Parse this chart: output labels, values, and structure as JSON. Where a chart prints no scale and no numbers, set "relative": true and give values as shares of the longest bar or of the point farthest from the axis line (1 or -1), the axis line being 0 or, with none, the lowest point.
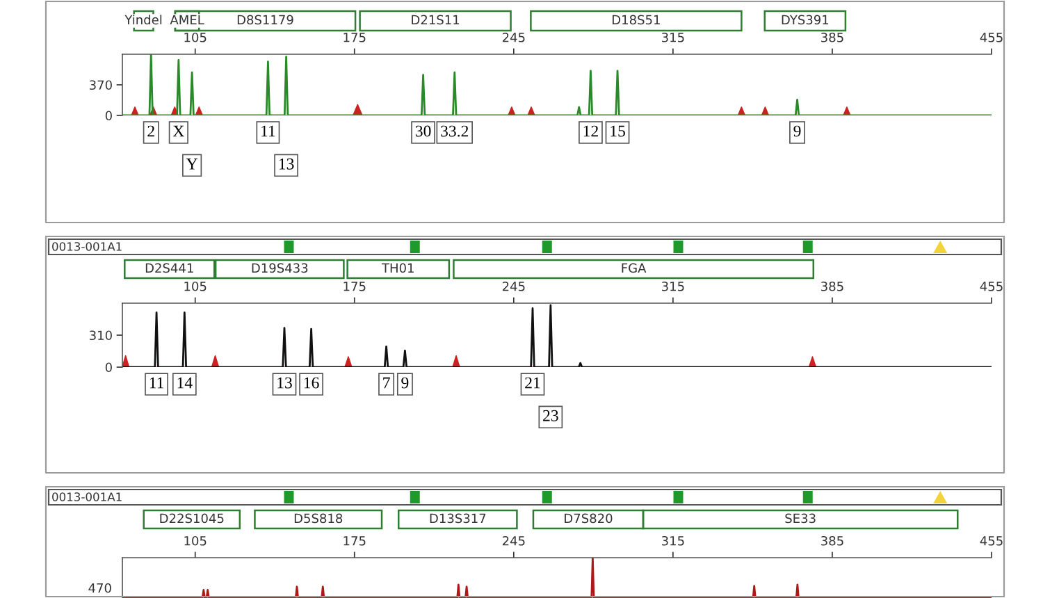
{
  "chart_data": [
    {
      "type": "line",
      "xlim": [
        73,
        455
      ],
      "xticks": [
        105,
        175,
        245,
        315,
        385,
        455
      ],
      "ylim": [
        0,
        740
      ],
      "yticks": [
        0,
        370
      ],
      "series": [
        {
          "type": "area",
          "color": "#cc2222",
          "x": [
            73,
            77.0,
            78.5,
            80.0,
            85.1,
            86.6,
            88.1,
            94.5,
            96,
            97.5,
            105.2,
            106.7,
            108.2,
            174.4,
            176.4,
            178.4,
            242.6,
            244.1,
            245.6,
            251.2,
            252.7,
            254.2,
            343.6,
            345.1,
            346.6,
            354.0,
            355.5,
            357.0,
            389.9,
            391.4,
            392.9,
            455
          ],
          "values": [
            0,
            0,
            100,
            0,
            0,
            100,
            0,
            0,
            100,
            0,
            0,
            100,
            0,
            0,
            130,
            0,
            0,
            100,
            0,
            0,
            100,
            0,
            0,
            100,
            0,
            0,
            100,
            0,
            0,
            100,
            0,
            0
          ]
        },
        {
          "color": "#2a8a2a",
          "x": [
            73,
            84.9,
            85.6,
            86.3,
            97.0,
            97.7,
            98.4,
            102.9,
            103.6,
            104.3,
            136.3,
            137.0,
            137.7,
            144.3,
            145.0,
            145.7,
            204.5,
            205.2,
            205.9,
            218.3,
            219.0,
            219.7,
            273.0,
            273.7,
            274.4,
            278.1,
            278.8,
            279.5,
            289.9,
            290.6,
            291.3,
            368.9,
            369.6,
            370.3,
            455
          ],
          "values": [
            0,
            0,
            740,
            0,
            0,
            670,
            0,
            0,
            520,
            0,
            0,
            650,
            0,
            0,
            710,
            0,
            0,
            490,
            0,
            0,
            520,
            0,
            0,
            100,
            0,
            0,
            540,
            0,
            0,
            540,
            0,
            0,
            190,
            0,
            0
          ]
        }
      ],
      "annotations": [
        "Yindel",
        "AMEL",
        "D8S1179",
        "D21S11",
        "D18S51",
        "DYS391",
        "2",
        "X",
        "Y",
        "11",
        "13",
        "30",
        "33.2",
        "12",
        "15",
        "9"
      ]
    },
    {
      "type": "line",
      "xlim": [
        73,
        455
      ],
      "xticks": [
        105,
        175,
        245,
        315,
        385,
        455
      ],
      "ylim": [
        0,
        620
      ],
      "yticks": [
        0,
        310
      ],
      "series": [
        {
          "type": "area",
          "color": "#cc2222",
          "x": [
            73,
            74.4,
            75.9,
            112.3,
            113.8,
            115.3,
            170.8,
            172.3,
            173.8,
            218.2,
            219.7,
            221.2,
            374.8,
            376.3,
            377.8,
            455
          ],
          "values": [
            0,
            110,
            0,
            0,
            110,
            0,
            0,
            100,
            0,
            0,
            110,
            0,
            0,
            100,
            0,
            0
          ]
        },
        {
          "color": "#111111",
          "x": [
            73,
            87.3,
            88.0,
            88.7,
            99.6,
            100.3,
            101.0,
            143.5,
            144.2,
            144.9,
            155.3,
            156.0,
            156.7,
            188.3,
            189.0,
            189.7,
            196.5,
            197.2,
            197.9,
            252.6,
            253.3,
            254.0,
            260.5,
            261.2,
            261.9,
            273.6,
            274.3,
            275.0,
            455
          ],
          "values": [
            0,
            0,
            530,
            0,
            0,
            530,
            0,
            0,
            380,
            0,
            0,
            370,
            0,
            0,
            200,
            0,
            0,
            160,
            0,
            0,
            570,
            0,
            0,
            600,
            0,
            0,
            40,
            0,
            0
          ]
        }
      ],
      "annotations": [
        "0013-001A1",
        "D2S441",
        "D19S433",
        "TH01",
        "FGA",
        "11",
        "14",
        "13",
        "16",
        "7",
        "9",
        "21",
        "23"
      ]
    },
    {
      "type": "line",
      "relative": true,
      "xlim": [
        73,
        455
      ],
      "xticks": [
        105,
        175,
        245,
        315,
        385,
        455
      ],
      "series": [
        {
          "color": "#b01818",
          "x": [
            73,
            108.2,
            108.7,
            109.2,
            110.0,
            110.5,
            111.0,
            149.2,
            149.7,
            150.2,
            160.6,
            161.1,
            161.6,
            220.2,
            220.7,
            221.2,
            223.8,
            224.3,
            224.8,
            279.2,
            279.7,
            280.2,
            350.2,
            350.7,
            351.2,
            369.2,
            369.7,
            370.2,
            455
          ],
          "values": [
            0,
            0,
            0.2,
            0,
            0,
            0.2,
            0,
            0,
            0.28,
            0,
            0,
            0.28,
            0,
            0,
            0.33,
            0,
            0,
            0.28,
            0,
            0,
            1,
            0,
            0,
            0.3,
            0,
            0,
            0.33,
            0,
            0
          ]
        }
      ],
      "annotations": [
        "0013-001A1",
        "D22S1045",
        "D5S818",
        "D13S317",
        "D7S820",
        "SE33",
        "470"
      ]
    }
  ]
}
